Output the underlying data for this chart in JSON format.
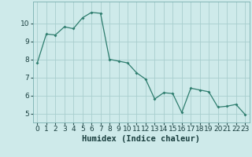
{
  "x": [
    0,
    1,
    2,
    3,
    4,
    5,
    6,
    7,
    8,
    9,
    10,
    11,
    12,
    13,
    14,
    15,
    16,
    17,
    18,
    19,
    20,
    21,
    22,
    23
  ],
  "y": [
    7.8,
    9.4,
    9.35,
    9.8,
    9.7,
    10.3,
    10.6,
    10.55,
    8.0,
    7.9,
    7.8,
    7.25,
    6.9,
    5.8,
    6.15,
    6.1,
    5.05,
    6.4,
    6.3,
    6.2,
    5.35,
    5.4,
    5.5,
    4.95
  ],
  "line_color": "#2e7d6e",
  "marker": "D",
  "marker_size": 2.0,
  "bg_color": "#ceeaea",
  "grid_color": "#a8cece",
  "xlabel": "Humidex (Indice chaleur)",
  "xlabel_fontsize": 7.5,
  "tick_fontsize": 6.5,
  "ylim": [
    4.5,
    11.2
  ],
  "yticks": [
    5,
    6,
    7,
    8,
    9,
    10
  ],
  "xtick_labels": [
    "0",
    "1",
    "2",
    "3",
    "4",
    "5",
    "6",
    "7",
    "8",
    "9",
    "10",
    "11",
    "12",
    "13",
    "14",
    "15",
    "16",
    "17",
    "18",
    "19",
    "20",
    "21",
    "22",
    "23"
  ]
}
